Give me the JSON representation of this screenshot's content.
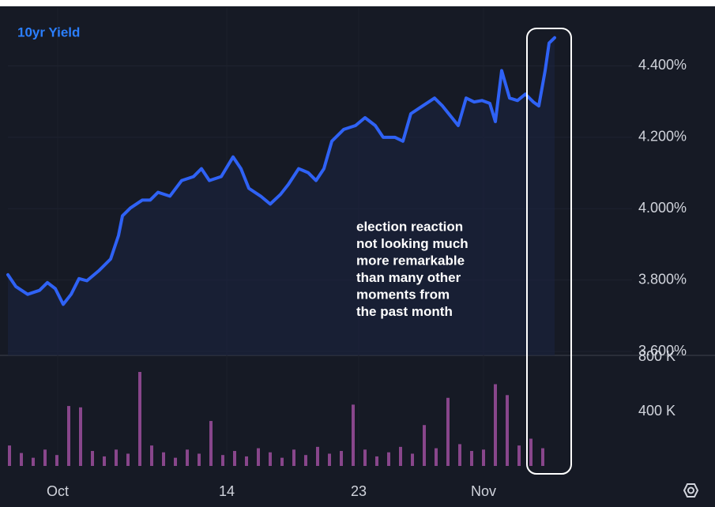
{
  "chart_data": {
    "type": "line",
    "series": [
      {
        "name": "10yr Yield",
        "color": "#2f62f5",
        "values": [
          3.815,
          3.782,
          3.76,
          3.771,
          3.793,
          3.776,
          3.732,
          3.76,
          3.804,
          3.798,
          3.826,
          3.859,
          3.925,
          3.98,
          4.002,
          4.024,
          4.024,
          4.046,
          4.035,
          4.079,
          4.09,
          4.112,
          4.079,
          4.09,
          4.145,
          4.112,
          4.057,
          4.035,
          4.013,
          4.04,
          4.068,
          4.112,
          4.101,
          4.079,
          4.112,
          4.189,
          4.222,
          4.233,
          4.255,
          4.233,
          4.2,
          4.2,
          4.189,
          4.266,
          4.288,
          4.31,
          4.288,
          4.255,
          4.233,
          4.31,
          4.299,
          4.303,
          4.295,
          4.244,
          4.387,
          4.31,
          4.303,
          4.321,
          4.299,
          4.288,
          4.387,
          4.464,
          4.479
        ]
      }
    ],
    "x": [
      0,
      10,
      25,
      40,
      50,
      60,
      70,
      80,
      90,
      100,
      115,
      130,
      140,
      145,
      155,
      170,
      180,
      190,
      205,
      220,
      235,
      245,
      255,
      270,
      285,
      295,
      305,
      320,
      332,
      345,
      355,
      368,
      380,
      390,
      400,
      410,
      425,
      440,
      452,
      465,
      475,
      490,
      500,
      510,
      525,
      540,
      550,
      562,
      570,
      580,
      590,
      600,
      610,
      617,
      625,
      635,
      645,
      655,
      665,
      672,
      680,
      685,
      692
    ],
    "xlim": [
      0,
      790
    ],
    "xticks": [
      {
        "value": 63,
        "label": "Oct"
      },
      {
        "value": 277,
        "label": "14"
      },
      {
        "value": 444,
        "label": "23"
      },
      {
        "value": 602,
        "label": "Nov"
      }
    ],
    "ylim": [
      3.589,
      4.5626
    ],
    "yticks": [
      {
        "value": 3.6,
        "label": "3.600%"
      },
      {
        "value": 3.8,
        "label": "3.800%"
      },
      {
        "value": 4.0,
        "label": "4.000%"
      },
      {
        "value": 4.2,
        "label": "4.200%"
      },
      {
        "value": 4.4,
        "label": "4.400%"
      }
    ],
    "grid": true,
    "annotation": [
      "election reaction",
      "not looking much",
      "more remarkable",
      "than many other",
      "moments from",
      "the past month"
    ],
    "volume": {
      "color": "#9c4f9e",
      "x": [
        2,
        17,
        32,
        47,
        62,
        77,
        92,
        107,
        122,
        137,
        152,
        167,
        182,
        197,
        212,
        227,
        242,
        257,
        272,
        287,
        302,
        317,
        332,
        347,
        362,
        377,
        392,
        407,
        422,
        437,
        452,
        467,
        482,
        497,
        512,
        527,
        542,
        557,
        572,
        587,
        602,
        617,
        632,
        647,
        662,
        677
      ],
      "values": [
        150000,
        95000,
        60000,
        120000,
        80000,
        440000,
        430000,
        110000,
        70000,
        120000,
        90000,
        690000,
        150000,
        100000,
        60000,
        120000,
        90000,
        330000,
        80000,
        110000,
        70000,
        130000,
        100000,
        60000,
        120000,
        80000,
        140000,
        90000,
        110000,
        450000,
        120000,
        70000,
        100000,
        140000,
        90000,
        300000,
        130000,
        500000,
        160000,
        110000,
        120000,
        600000,
        520000,
        150000,
        200000,
        130000
      ],
      "ylim": [
        0,
        800000
      ],
      "yticks": [
        {
          "value": 400000,
          "label": "400 K"
        },
        {
          "value": 800000,
          "label": "800 K"
        }
      ]
    }
  }
}
